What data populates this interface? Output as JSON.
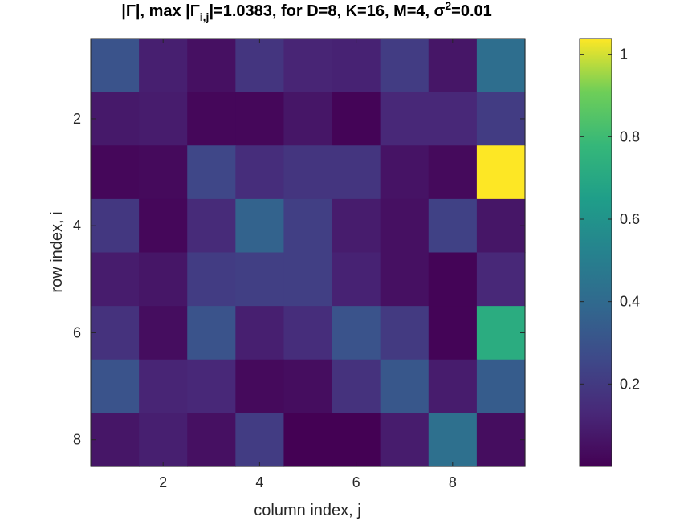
{
  "chart_data": {
    "type": "heatmap",
    "title_parts": {
      "gamma_abs": "|Γ|, max |Γ",
      "sub_ij": "i,j",
      "middle": "|=1.0383, for D=8, K=16, M=4, σ",
      "sup_2": "2",
      "tail": "=0.01"
    },
    "xlabel": "column index, j",
    "ylabel": "row index, i",
    "x_ticks": [
      2,
      4,
      6,
      8
    ],
    "y_ticks": [
      2,
      4,
      6,
      8
    ],
    "x_range": [
      0.5,
      9.5
    ],
    "y_range": [
      0.5,
      8.5
    ],
    "y_direction": "reverse",
    "columns": 9,
    "rows": 8,
    "values": [
      [
        0.3,
        0.1,
        0.05,
        0.18,
        0.12,
        0.11,
        0.21,
        0.07,
        0.42
      ],
      [
        0.08,
        0.09,
        0.02,
        0.02,
        0.07,
        0.01,
        0.13,
        0.13,
        0.21
      ],
      [
        0.02,
        0.03,
        0.25,
        0.15,
        0.18,
        0.18,
        0.06,
        0.03,
        1.0383
      ],
      [
        0.19,
        0.02,
        0.14,
        0.37,
        0.22,
        0.09,
        0.05,
        0.23,
        0.07
      ],
      [
        0.09,
        0.07,
        0.21,
        0.22,
        0.22,
        0.11,
        0.05,
        0.01,
        0.13
      ],
      [
        0.17,
        0.04,
        0.3,
        0.1,
        0.15,
        0.3,
        0.2,
        0.01,
        0.72
      ],
      [
        0.3,
        0.12,
        0.13,
        0.03,
        0.04,
        0.17,
        0.32,
        0.09,
        0.34
      ],
      [
        0.07,
        0.1,
        0.05,
        0.21,
        0.0,
        0.0,
        0.09,
        0.43,
        0.04
      ]
    ],
    "colorbar": {
      "colormap": "viridis",
      "range": [
        0,
        1.0383
      ],
      "ticks": [
        0.2,
        0.4,
        0.6,
        0.8,
        1
      ],
      "tick_labels": [
        "0.2",
        "0.4",
        "0.6",
        "0.8",
        "1"
      ]
    },
    "colors": {
      "axes": "#262626",
      "background": "#ffffff"
    }
  }
}
